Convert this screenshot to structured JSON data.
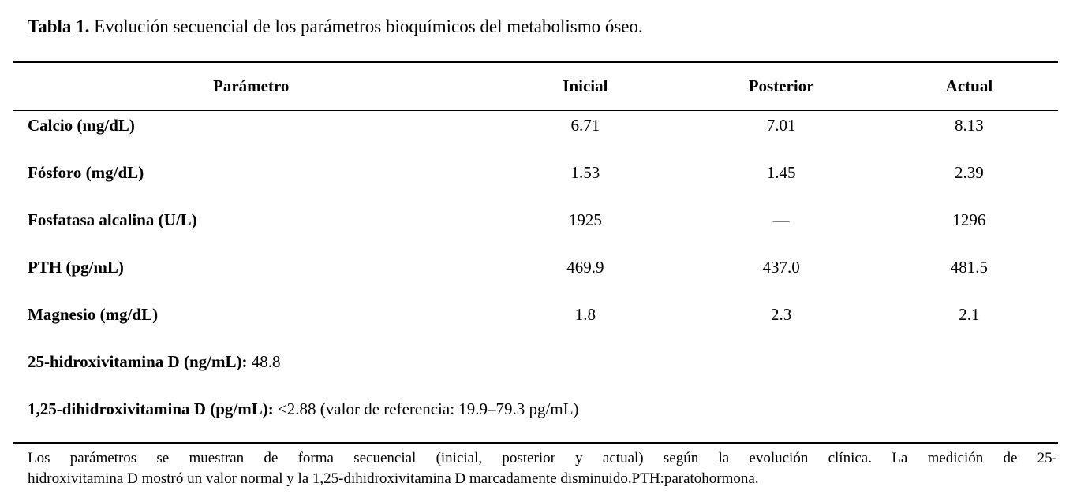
{
  "title": {
    "label": "Tabla 1.",
    "text": "Evolución secuencial de los parámetros bioquímicos del metabolismo óseo."
  },
  "table": {
    "columns": [
      "Parámetro",
      "Inicial",
      "Posterior",
      "Actual"
    ],
    "rows": [
      {
        "param": "Calcio (mg/dL)",
        "inicial": "6.71",
        "posterior": "7.01",
        "actual": "8.13"
      },
      {
        "param": "Fósforo (mg/dL)",
        "inicial": "1.53",
        "posterior": "1.45",
        "actual": "2.39"
      },
      {
        "param": "Fosfatasa alcalina (U/L)",
        "inicial": "1925",
        "posterior": "—",
        "actual": "1296"
      },
      {
        "param": "PTH (pg/mL)",
        "inicial": "469.9",
        "posterior": "437.0",
        "actual": "481.5"
      },
      {
        "param": "Magnesio (mg/dL)",
        "inicial": "1.8",
        "posterior": "2.3",
        "actual": "2.1"
      }
    ],
    "extra_rows": [
      {
        "label": "25-hidroxivitamina D (ng/mL):",
        "value": "48.8"
      },
      {
        "label": "1,25-dihidroxivitamina D (pg/mL):",
        "value": "<2.88 (valor de referencia: 19.9–79.3 pg/mL)"
      }
    ]
  },
  "footnote": {
    "lines": [
      "Los parámetros se muestran de forma secuencial (inicial, posterior y actual) según la evolución clínica. La medición de 25-",
      "hidroxivitamina D mostró un valor normal y la 1,25-dihidroxivitamina D marcadamente disminuido.PTH:paratohormona."
    ]
  }
}
